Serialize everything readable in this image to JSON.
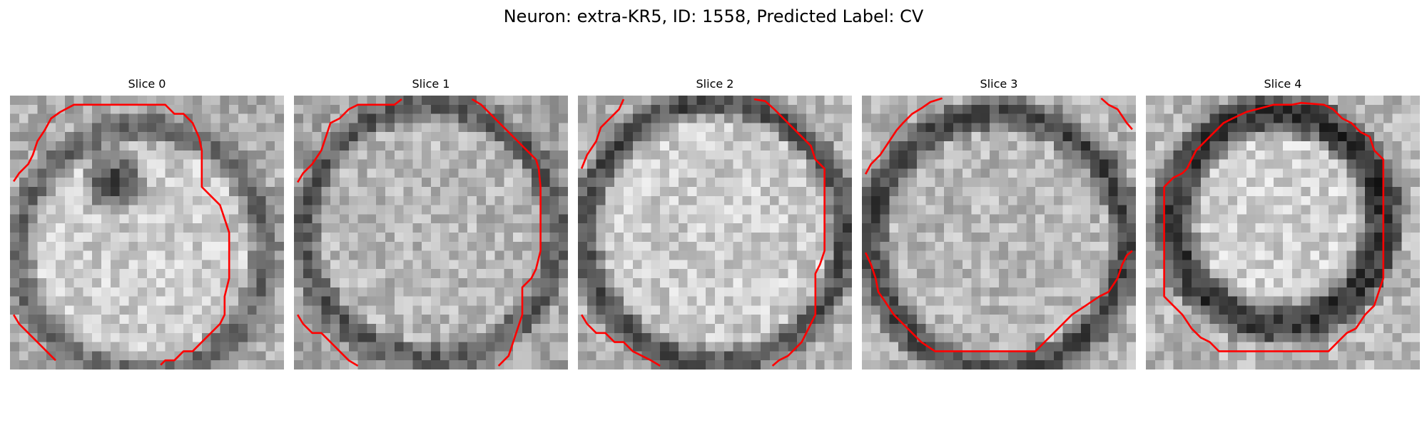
{
  "figure": {
    "title": "Neuron: extra-KR5, ID: 1558, Predicted Label: CV"
  },
  "panels": [
    {
      "title": "Slice 0"
    },
    {
      "title": "Slice 1"
    },
    {
      "title": "Slice 2"
    },
    {
      "title": "Slice 3"
    },
    {
      "title": "Slice 4"
    }
  ],
  "colors": {
    "contour": "#ff0000",
    "background": "#ffffff"
  }
}
